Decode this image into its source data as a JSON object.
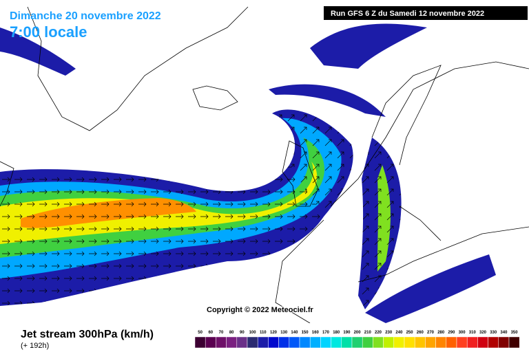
{
  "header": {
    "date": "Dimanche 20 novembre 2022",
    "time": "7:00 locale",
    "run": "Run GFS 6 Z du Samedi 12 novembre 2022"
  },
  "copyright": "Copyright © 2022 Meteociel.fr",
  "footer": {
    "title": "Jet stream 300hPa (km/h)",
    "lead": "(+ 192h)"
  },
  "legend": {
    "labels": [
      50,
      60,
      70,
      80,
      90,
      100,
      110,
      120,
      130,
      140,
      150,
      160,
      170,
      180,
      190,
      200,
      210,
      220,
      230,
      240,
      250,
      260,
      270,
      280,
      290,
      300,
      310,
      320,
      330,
      340,
      350
    ],
    "colors": [
      "#3c0032",
      "#5a0050",
      "#6e1068",
      "#7a2080",
      "#6a3088",
      "#2a2a70",
      "#1c1ca8",
      "#0008cc",
      "#0030e8",
      "#0058f8",
      "#0088ff",
      "#00b0ff",
      "#00d4ff",
      "#00e8e0",
      "#00e0a8",
      "#20d070",
      "#40d040",
      "#80e020",
      "#c0f000",
      "#f0f000",
      "#ffe000",
      "#ffc400",
      "#ffa400",
      "#ff8400",
      "#ff6000",
      "#ff4020",
      "#f02020",
      "#d00010",
      "#b00000",
      "#800000",
      "#400000"
    ]
  }
}
